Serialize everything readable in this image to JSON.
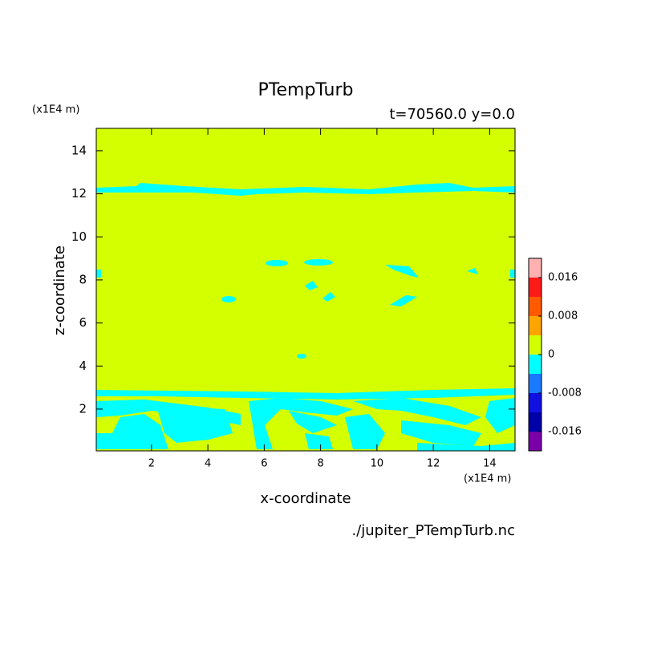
{
  "chart_data": {
    "type": "contour",
    "title": "PTempTurb",
    "subtitle": "t=70560.0 y=0.0",
    "x_label": "x-coordinate",
    "y_label": "z-coordinate",
    "x_units": "(x1E4 m)",
    "y_units": "(x1E4 m)",
    "source": "./jupiter_PTempTurb.nc",
    "xlim": [
      0.04,
      14.9
    ],
    "ylim": [
      0.06,
      15.04
    ],
    "xticks": [
      2,
      4,
      6,
      8,
      10,
      12,
      14
    ],
    "yticks": [
      2,
      4,
      6,
      8,
      10,
      12,
      14
    ],
    "colorbar": {
      "levels": [
        -0.02,
        -0.016,
        -0.012,
        -0.008,
        -0.004,
        0,
        0.004,
        0.008,
        0.012,
        0.016,
        0.02
      ],
      "colors": [
        "#7a00a8",
        "#0000a8",
        "#1010e0",
        "#1a7aff",
        "#00ffff",
        "#d4ff00",
        "#ffa500",
        "#ff5a00",
        "#ff1a1a",
        "#ffb0b0"
      ],
      "ticks": [
        -0.016,
        -0.008,
        0,
        0.008,
        0.016
      ]
    }
  }
}
